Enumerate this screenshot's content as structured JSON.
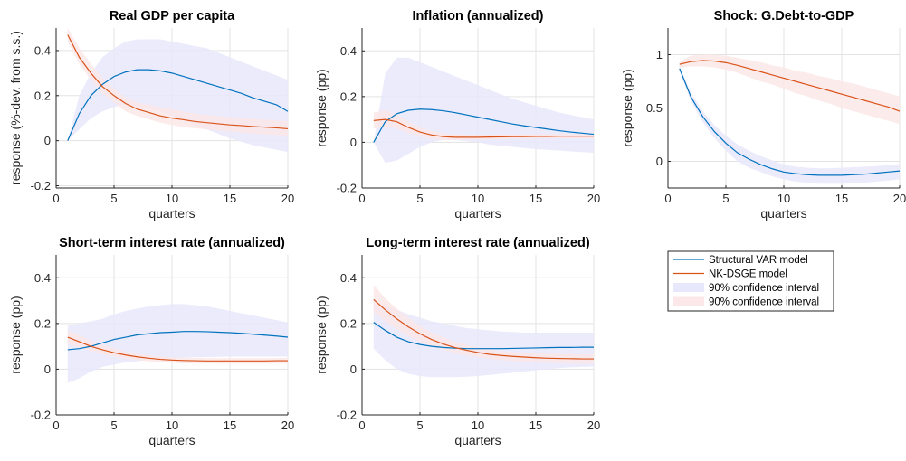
{
  "colors": {
    "var_line": "#0072BD",
    "dsge_line": "#D95319",
    "var_band": "#E8E8FC",
    "dsge_band": "#FCE8E8",
    "grid": "#E3E3E3",
    "axis": "#262626"
  },
  "legend": {
    "entries": [
      {
        "label": "Structural VAR model",
        "kind": "line",
        "color": "#0072BD"
      },
      {
        "label": "NK-DSGE model",
        "kind": "line",
        "color": "#D95319"
      },
      {
        "label": "90% confidence interval",
        "kind": "patch",
        "color": "#E8E8FC"
      },
      {
        "label": "90% confidence interval",
        "kind": "patch",
        "color": "#FCE8E8"
      }
    ]
  },
  "chart_data": [
    {
      "type": "line",
      "title": "Real GDP per capita",
      "xlabel": "quarters",
      "ylabel": "response (%-dev. from s.s.)",
      "xlim": [
        0,
        20
      ],
      "ylim": [
        -0.21,
        0.5
      ],
      "xticks": [
        0,
        5,
        10,
        15,
        20
      ],
      "yticks": [
        -0.2,
        0,
        0.2,
        0.4
      ],
      "grid": true,
      "x": [
        1,
        2,
        3,
        4,
        5,
        6,
        7,
        8,
        9,
        10,
        11,
        12,
        13,
        14,
        15,
        16,
        17,
        18,
        19,
        20
      ],
      "series": [
        {
          "name": "Structural VAR model",
          "values": [
            0.0,
            0.12,
            0.2,
            0.25,
            0.285,
            0.305,
            0.315,
            0.315,
            0.31,
            0.3,
            0.285,
            0.27,
            0.255,
            0.24,
            0.225,
            0.21,
            0.19,
            0.175,
            0.16,
            0.13
          ],
          "lower": [
            0.0,
            0.05,
            0.1,
            0.13,
            0.15,
            0.16,
            0.15,
            0.14,
            0.13,
            0.11,
            0.09,
            0.07,
            0.05,
            0.03,
            0.01,
            -0.005,
            -0.02,
            -0.03,
            -0.04,
            -0.05
          ],
          "upper": [
            0.0,
            0.2,
            0.3,
            0.37,
            0.41,
            0.44,
            0.45,
            0.45,
            0.45,
            0.44,
            0.43,
            0.42,
            0.41,
            0.39,
            0.37,
            0.35,
            0.33,
            0.31,
            0.29,
            0.27
          ]
        },
        {
          "name": "NK-DSGE model",
          "values": [
            0.47,
            0.37,
            0.3,
            0.24,
            0.2,
            0.165,
            0.14,
            0.125,
            0.11,
            0.1,
            0.093,
            0.085,
            0.08,
            0.075,
            0.07,
            0.067,
            0.063,
            0.06,
            0.057,
            0.053
          ],
          "lower": [
            0.44,
            0.34,
            0.27,
            0.21,
            0.17,
            0.13,
            0.11,
            0.095,
            0.08,
            0.07,
            0.06,
            0.055,
            0.05,
            0.045,
            0.04,
            0.035,
            0.03,
            0.028,
            0.025,
            0.022
          ],
          "upper": [
            0.5,
            0.41,
            0.34,
            0.28,
            0.23,
            0.19,
            0.17,
            0.16,
            0.15,
            0.14,
            0.13,
            0.12,
            0.115,
            0.11,
            0.105,
            0.1,
            0.097,
            0.094,
            0.09,
            0.087
          ]
        }
      ]
    },
    {
      "type": "line",
      "title": "Inflation (annualized)",
      "xlabel": "quarters",
      "ylabel": "response (pp)",
      "xlim": [
        0,
        20
      ],
      "ylim": [
        -0.2,
        0.5
      ],
      "xticks": [
        0,
        5,
        10,
        15,
        20
      ],
      "yticks": [
        -0.2,
        0,
        0.2,
        0.4
      ],
      "grid": true,
      "x": [
        1,
        2,
        3,
        4,
        5,
        6,
        7,
        8,
        9,
        10,
        11,
        12,
        13,
        14,
        15,
        16,
        17,
        18,
        19,
        20
      ],
      "series": [
        {
          "name": "Structural VAR model",
          "values": [
            0.0,
            0.09,
            0.125,
            0.14,
            0.145,
            0.143,
            0.138,
            0.13,
            0.12,
            0.11,
            0.1,
            0.09,
            0.08,
            0.072,
            0.065,
            0.058,
            0.051,
            0.045,
            0.04,
            0.035
          ],
          "lower": [
            0.0,
            -0.09,
            -0.08,
            -0.05,
            -0.02,
            0.0,
            0.01,
            0.01,
            0.005,
            0.0,
            -0.01,
            -0.015,
            -0.02,
            -0.025,
            -0.03,
            -0.033,
            -0.036,
            -0.04,
            -0.043,
            -0.046
          ],
          "upper": [
            0.0,
            0.3,
            0.37,
            0.37,
            0.35,
            0.33,
            0.31,
            0.29,
            0.27,
            0.25,
            0.23,
            0.21,
            0.19,
            0.175,
            0.16,
            0.145,
            0.13,
            0.12,
            0.11,
            0.1
          ]
        },
        {
          "name": "NK-DSGE model",
          "values": [
            0.095,
            0.1,
            0.09,
            0.065,
            0.045,
            0.032,
            0.025,
            0.022,
            0.022,
            0.022,
            0.023,
            0.024,
            0.025,
            0.025,
            0.026,
            0.026,
            0.027,
            0.027,
            0.027,
            0.027
          ],
          "lower": [
            0.06,
            0.07,
            0.06,
            0.04,
            0.025,
            0.015,
            0.01,
            0.01,
            0.01,
            0.012,
            0.013,
            0.014,
            0.015,
            0.016,
            0.016,
            0.017,
            0.017,
            0.018,
            0.018,
            0.018
          ],
          "upper": [
            0.13,
            0.14,
            0.12,
            0.09,
            0.065,
            0.05,
            0.04,
            0.035,
            0.034,
            0.034,
            0.034,
            0.035,
            0.035,
            0.036,
            0.036,
            0.036,
            0.037,
            0.037,
            0.037,
            0.037
          ]
        }
      ]
    },
    {
      "type": "line",
      "title": "Shock: G.Debt-to-GDP",
      "xlabel": "quarters",
      "ylabel": "response (pp)",
      "xlim": [
        0,
        20
      ],
      "ylim": [
        -0.25,
        1.25
      ],
      "xticks": [
        0,
        5,
        10,
        15,
        20
      ],
      "yticks": [
        0,
        0.5,
        1
      ],
      "grid": true,
      "x": [
        1,
        2,
        3,
        4,
        5,
        6,
        7,
        8,
        9,
        10,
        11,
        12,
        13,
        14,
        15,
        16,
        17,
        18,
        19,
        20
      ],
      "series": [
        {
          "name": "Structural VAR model",
          "values": [
            0.87,
            0.6,
            0.42,
            0.28,
            0.17,
            0.08,
            0.02,
            -0.03,
            -0.07,
            -0.1,
            -0.115,
            -0.125,
            -0.13,
            -0.13,
            -0.13,
            -0.125,
            -0.12,
            -0.11,
            -0.1,
            -0.09
          ],
          "lower": [
            0.85,
            0.56,
            0.37,
            0.22,
            0.1,
            0.0,
            -0.06,
            -0.1,
            -0.14,
            -0.17,
            -0.19,
            -0.2,
            -0.21,
            -0.21,
            -0.21,
            -0.205,
            -0.2,
            -0.19,
            -0.18,
            -0.17
          ],
          "upper": [
            0.89,
            0.64,
            0.47,
            0.34,
            0.24,
            0.16,
            0.1,
            0.05,
            0.01,
            -0.03,
            -0.05,
            -0.06,
            -0.065,
            -0.065,
            -0.06,
            -0.055,
            -0.05,
            -0.045,
            -0.035,
            -0.025
          ]
        },
        {
          "name": "NK-DSGE model",
          "values": [
            0.91,
            0.935,
            0.945,
            0.94,
            0.925,
            0.9,
            0.87,
            0.84,
            0.81,
            0.78,
            0.75,
            0.72,
            0.69,
            0.66,
            0.63,
            0.6,
            0.57,
            0.54,
            0.51,
            0.47
          ],
          "lower": [
            0.88,
            0.89,
            0.89,
            0.88,
            0.86,
            0.83,
            0.79,
            0.75,
            0.72,
            0.68,
            0.64,
            0.61,
            0.57,
            0.54,
            0.5,
            0.47,
            0.44,
            0.41,
            0.38,
            0.35
          ],
          "upper": [
            0.94,
            0.99,
            1.0,
            1.0,
            0.99,
            0.97,
            0.95,
            0.93,
            0.9,
            0.88,
            0.85,
            0.83,
            0.8,
            0.78,
            0.75,
            0.73,
            0.7,
            0.67,
            0.64,
            0.61
          ]
        }
      ]
    },
    {
      "type": "line",
      "title": "Short-term interest rate (annualized)",
      "xlabel": "quarters",
      "ylabel": "response (pp)",
      "xlim": [
        0,
        20
      ],
      "ylim": [
        -0.2,
        0.5
      ],
      "xticks": [
        0,
        5,
        10,
        15,
        20
      ],
      "yticks": [
        -0.2,
        0,
        0.2,
        0.4
      ],
      "grid": true,
      "x": [
        1,
        2,
        3,
        4,
        5,
        6,
        7,
        8,
        9,
        10,
        11,
        12,
        13,
        14,
        15,
        16,
        17,
        18,
        19,
        20
      ],
      "series": [
        {
          "name": "Structural VAR model",
          "values": [
            0.085,
            0.09,
            0.1,
            0.115,
            0.13,
            0.14,
            0.15,
            0.155,
            0.16,
            0.162,
            0.165,
            0.165,
            0.164,
            0.162,
            0.16,
            0.157,
            0.153,
            0.149,
            0.145,
            0.14
          ],
          "lower": [
            -0.06,
            -0.04,
            -0.01,
            0.01,
            0.02,
            0.03,
            0.035,
            0.04,
            0.045,
            0.048,
            0.05,
            0.052,
            0.053,
            0.054,
            0.055,
            0.055,
            0.055,
            0.055,
            0.055,
            0.055
          ],
          "upper": [
            0.19,
            0.2,
            0.21,
            0.22,
            0.24,
            0.255,
            0.265,
            0.275,
            0.28,
            0.285,
            0.285,
            0.28,
            0.275,
            0.265,
            0.255,
            0.245,
            0.235,
            0.225,
            0.215,
            0.205
          ]
        },
        {
          "name": "NK-DSGE model",
          "values": [
            0.14,
            0.12,
            0.1,
            0.085,
            0.072,
            0.062,
            0.054,
            0.048,
            0.043,
            0.04,
            0.038,
            0.037,
            0.036,
            0.036,
            0.036,
            0.036,
            0.036,
            0.036,
            0.037,
            0.037
          ],
          "lower": [
            0.11,
            0.095,
            0.08,
            0.065,
            0.055,
            0.047,
            0.04,
            0.035,
            0.031,
            0.028,
            0.026,
            0.025,
            0.025,
            0.024,
            0.024,
            0.024,
            0.024,
            0.024,
            0.025,
            0.025
          ],
          "upper": [
            0.17,
            0.15,
            0.125,
            0.105,
            0.09,
            0.078,
            0.068,
            0.061,
            0.056,
            0.052,
            0.05,
            0.049,
            0.048,
            0.048,
            0.048,
            0.048,
            0.048,
            0.048,
            0.049,
            0.049
          ]
        }
      ]
    },
    {
      "type": "line",
      "title": "Long-term interest rate (annualized)",
      "xlabel": "quarters",
      "ylabel": "response (pp)",
      "xlim": [
        0,
        20
      ],
      "ylim": [
        -0.2,
        0.5
      ],
      "xticks": [
        0,
        5,
        10,
        15,
        20
      ],
      "yticks": [
        -0.2,
        0,
        0.2,
        0.4
      ],
      "grid": true,
      "x": [
        1,
        2,
        3,
        4,
        5,
        6,
        7,
        8,
        9,
        10,
        11,
        12,
        13,
        14,
        15,
        16,
        17,
        18,
        19,
        20
      ],
      "series": [
        {
          "name": "Structural VAR model",
          "values": [
            0.205,
            0.17,
            0.14,
            0.12,
            0.108,
            0.1,
            0.095,
            0.092,
            0.09,
            0.09,
            0.09,
            0.09,
            0.091,
            0.092,
            0.093,
            0.094,
            0.095,
            0.095,
            0.096,
            0.096
          ],
          "lower": [
            0.09,
            0.04,
            0.0,
            -0.02,
            -0.03,
            -0.035,
            -0.035,
            -0.035,
            -0.033,
            -0.03,
            -0.025,
            -0.02,
            -0.015,
            -0.01,
            -0.005,
            0.0,
            0.005,
            0.008,
            0.01,
            0.012
          ],
          "upper": [
            0.3,
            0.28,
            0.26,
            0.24,
            0.225,
            0.21,
            0.2,
            0.19,
            0.18,
            0.175,
            0.17,
            0.165,
            0.163,
            0.16,
            0.16,
            0.16,
            0.16,
            0.16,
            0.16,
            0.16
          ]
        },
        {
          "name": "NK-DSGE model",
          "values": [
            0.305,
            0.26,
            0.22,
            0.185,
            0.155,
            0.13,
            0.11,
            0.095,
            0.083,
            0.073,
            0.065,
            0.06,
            0.056,
            0.053,
            0.05,
            0.048,
            0.047,
            0.046,
            0.045,
            0.045
          ],
          "lower": [
            0.25,
            0.21,
            0.175,
            0.145,
            0.12,
            0.1,
            0.085,
            0.07,
            0.06,
            0.052,
            0.045,
            0.04,
            0.036,
            0.033,
            0.03,
            0.028,
            0.026,
            0.025,
            0.024,
            0.023
          ],
          "upper": [
            0.37,
            0.31,
            0.265,
            0.225,
            0.19,
            0.16,
            0.14,
            0.12,
            0.106,
            0.094,
            0.086,
            0.08,
            0.076,
            0.073,
            0.07,
            0.068,
            0.067,
            0.066,
            0.065,
            0.065
          ]
        }
      ]
    }
  ]
}
